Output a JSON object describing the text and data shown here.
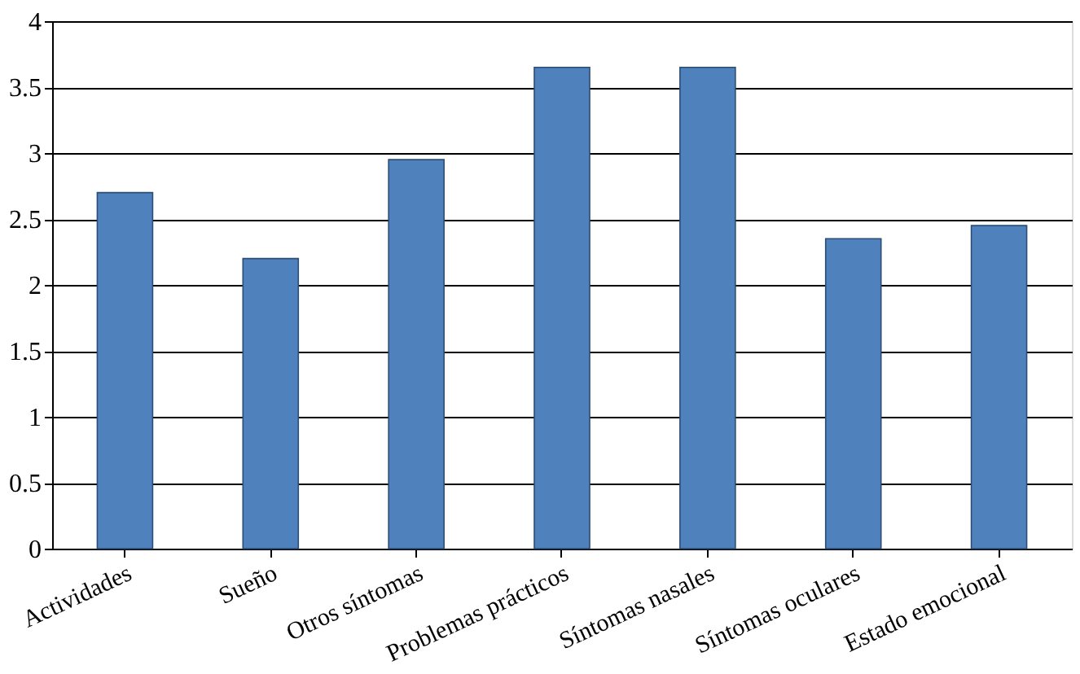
{
  "chart_data": {
    "type": "bar",
    "categories": [
      "Actividades",
      "Sueño",
      "Otros síntomas",
      "Problemas prácticos",
      "Síntomas nasales",
      "Síntomas oculares",
      "Estado emocional"
    ],
    "values": [
      2.7,
      2.2,
      2.95,
      3.65,
      3.65,
      2.35,
      2.45
    ],
    "color": "#4f81bd",
    "ylim": [
      0,
      4
    ],
    "yticks": [
      0,
      0.5,
      1,
      1.5,
      2,
      2.5,
      3,
      3.5,
      4
    ],
    "grid": "y"
  }
}
